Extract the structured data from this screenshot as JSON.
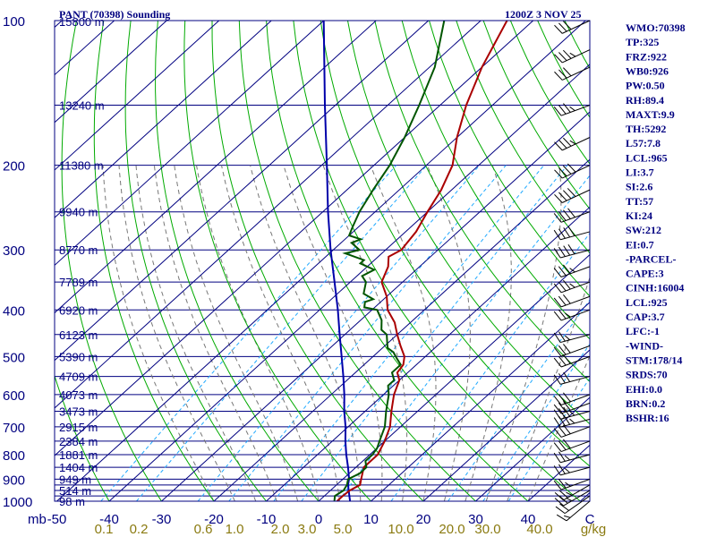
{
  "header": {
    "station": "PANT (70398) Sounding",
    "time": "1200Z  3 NOV 25"
  },
  "chart_data": {
    "type": "line",
    "subtype": "skew-T log-P sounding",
    "pressure_ticks": [
      {
        "p": 100,
        "label": "100"
      },
      {
        "p": 200,
        "label": "200"
      },
      {
        "p": 300,
        "label": "300"
      },
      {
        "p": 400,
        "label": "400"
      },
      {
        "p": 500,
        "label": "500"
      },
      {
        "p": 600,
        "label": "600"
      },
      {
        "p": 700,
        "label": "700"
      },
      {
        "p": 800,
        "label": "800"
      },
      {
        "p": 900,
        "label": "900"
      },
      {
        "p": 1000,
        "label": "1000"
      }
    ],
    "isobars": [
      100,
      150,
      200,
      250,
      300,
      350,
      400,
      450,
      500,
      550,
      600,
      650,
      700,
      750,
      800,
      850,
      900,
      925,
      950,
      975,
      1000
    ],
    "heights": [
      {
        "p": 100,
        "label": "15800 m"
      },
      {
        "p": 150,
        "label": "13240 m"
      },
      {
        "p": 200,
        "label": "11380 m"
      },
      {
        "p": 250,
        "label": "9940 m"
      },
      {
        "p": 300,
        "label": "8770 m"
      },
      {
        "p": 350,
        "label": "7789 m"
      },
      {
        "p": 400,
        "label": "6920 m"
      },
      {
        "p": 450,
        "label": "6123 m"
      },
      {
        "p": 500,
        "label": "5390 m"
      },
      {
        "p": 550,
        "label": "4709 m"
      },
      {
        "p": 600,
        "label": "4073 m"
      },
      {
        "p": 650,
        "label": "3473 m"
      },
      {
        "p": 700,
        "label": "2915 m"
      },
      {
        "p": 750,
        "label": "2384 m"
      },
      {
        "p": 800,
        "label": "1881 m"
      },
      {
        "p": 850,
        "label": "1404 m"
      },
      {
        "p": 900,
        "label": "949 m"
      },
      {
        "p": 950,
        "label": "514 m"
      },
      {
        "p": 1000,
        "label": "98 m"
      }
    ],
    "x_unit_label": "mb",
    "temp_ticks": [
      "-50",
      "-40",
      "-30",
      "-20",
      "-10",
      "0",
      "10",
      "20",
      "30",
      "40",
      "C"
    ],
    "mixing_ratio_ticks": [
      "0.1",
      "0.2",
      "0.6",
      "1.0",
      "2.0",
      "3.0",
      "5.0",
      "10.0",
      "20.0",
      "30.0",
      "40.0",
      "g/kg"
    ],
    "dewpoint_series": [
      {
        "p": 1000,
        "t": 3
      },
      {
        "p": 975,
        "t": 2
      },
      {
        "p": 950,
        "t": 2.5
      },
      {
        "p": 925,
        "t": 2
      },
      {
        "p": 900,
        "t": 1
      },
      {
        "p": 875,
        "t": 2
      },
      {
        "p": 850,
        "t": 2
      },
      {
        "p": 825,
        "t": 0.5
      },
      {
        "p": 800,
        "t": 0.5
      },
      {
        "p": 775,
        "t": 0
      },
      {
        "p": 750,
        "t": -1
      },
      {
        "p": 700,
        "t": -3
      },
      {
        "p": 650,
        "t": -6
      },
      {
        "p": 600,
        "t": -9
      },
      {
        "p": 575,
        "t": -11
      },
      {
        "p": 560,
        "t": -11
      },
      {
        "p": 540,
        "t": -13
      },
      {
        "p": 520,
        "t": -13
      },
      {
        "p": 505,
        "t": -15
      },
      {
        "p": 490,
        "t": -17
      },
      {
        "p": 480,
        "t": -19
      },
      {
        "p": 470,
        "t": -20
      },
      {
        "p": 450,
        "t": -22
      },
      {
        "p": 440,
        "t": -24
      },
      {
        "p": 420,
        "t": -26
      },
      {
        "p": 400,
        "t": -29
      },
      {
        "p": 395,
        "t": -32
      },
      {
        "p": 385,
        "t": -33
      },
      {
        "p": 380,
        "t": -32
      },
      {
        "p": 370,
        "t": -35
      },
      {
        "p": 350,
        "t": -37
      },
      {
        "p": 340,
        "t": -39
      },
      {
        "p": 330,
        "t": -38
      },
      {
        "p": 320,
        "t": -42
      },
      {
        "p": 315,
        "t": -42
      },
      {
        "p": 305,
        "t": -47
      },
      {
        "p": 300,
        "t": -45
      },
      {
        "p": 290,
        "t": -48
      },
      {
        "p": 285,
        "t": -47
      },
      {
        "p": 280,
        "t": -50
      },
      {
        "p": 270,
        "t": -51
      },
      {
        "p": 250,
        "t": -53
      },
      {
        "p": 225,
        "t": -55
      },
      {
        "p": 200,
        "t": -57
      },
      {
        "p": 175,
        "t": -60
      },
      {
        "p": 150,
        "t": -64
      },
      {
        "p": 125,
        "t": -69
      },
      {
        "p": 100,
        "t": -77
      }
    ],
    "temperature_series": [
      {
        "p": 1000,
        "t": 3.5
      },
      {
        "p": 975,
        "t": 3.5
      },
      {
        "p": 950,
        "t": 3.7
      },
      {
        "p": 925,
        "t": 4.5
      },
      {
        "p": 900,
        "t": 3.5
      },
      {
        "p": 850,
        "t": 1.5
      },
      {
        "p": 800,
        "t": 1.5
      },
      {
        "p": 750,
        "t": 0
      },
      {
        "p": 700,
        "t": -2
      },
      {
        "p": 650,
        "t": -5
      },
      {
        "p": 600,
        "t": -8
      },
      {
        "p": 560,
        "t": -10
      },
      {
        "p": 540,
        "t": -12
      },
      {
        "p": 520,
        "t": -12.5
      },
      {
        "p": 500,
        "t": -14
      },
      {
        "p": 475,
        "t": -17
      },
      {
        "p": 450,
        "t": -20
      },
      {
        "p": 425,
        "t": -23
      },
      {
        "p": 400,
        "t": -27
      },
      {
        "p": 375,
        "t": -30
      },
      {
        "p": 350,
        "t": -34
      },
      {
        "p": 325,
        "t": -36
      },
      {
        "p": 310,
        "t": -38
      },
      {
        "p": 300,
        "t": -37
      },
      {
        "p": 275,
        "t": -38
      },
      {
        "p": 250,
        "t": -40
      },
      {
        "p": 225,
        "t": -42
      },
      {
        "p": 200,
        "t": -45
      },
      {
        "p": 175,
        "t": -50
      },
      {
        "p": 150,
        "t": -55
      },
      {
        "p": 125,
        "t": -60
      },
      {
        "p": 100,
        "t": -65
      }
    ],
    "parcel_series": [
      {
        "p": 1000,
        "t": 6
      },
      {
        "p": 950,
        "t": 3.5
      },
      {
        "p": 925,
        "t": 2.2
      },
      {
        "p": 900,
        "t": 1.2
      },
      {
        "p": 850,
        "t": -1.5
      },
      {
        "p": 800,
        "t": -4.5
      },
      {
        "p": 750,
        "t": -7.5
      },
      {
        "p": 700,
        "t": -10.5
      },
      {
        "p": 650,
        "t": -14
      },
      {
        "p": 600,
        "t": -17.5
      },
      {
        "p": 550,
        "t": -21.5
      },
      {
        "p": 500,
        "t": -26
      },
      {
        "p": 450,
        "t": -31
      },
      {
        "p": 400,
        "t": -36.5
      },
      {
        "p": 350,
        "t": -43
      },
      {
        "p": 300,
        "t": -50.5
      },
      {
        "p": 250,
        "t": -59
      },
      {
        "p": 200,
        "t": -69
      },
      {
        "p": 150,
        "t": -82
      },
      {
        "p": 100,
        "t": -100
      }
    ],
    "wind_barbs": [
      {
        "p": 1000,
        "dir": 230,
        "spd": 15
      },
      {
        "p": 975,
        "dir": 235,
        "spd": 20
      },
      {
        "p": 950,
        "dir": 240,
        "spd": 25
      },
      {
        "p": 925,
        "dir": 240,
        "spd": 25
      },
      {
        "p": 900,
        "dir": 250,
        "spd": 25
      },
      {
        "p": 850,
        "dir": 255,
        "spd": 25
      },
      {
        "p": 800,
        "dir": 255,
        "spd": 25
      },
      {
        "p": 750,
        "dir": 250,
        "spd": 30
      },
      {
        "p": 700,
        "dir": 250,
        "spd": 30
      },
      {
        "p": 675,
        "dir": 255,
        "spd": 35
      },
      {
        "p": 650,
        "dir": 255,
        "spd": 35
      },
      {
        "p": 625,
        "dir": 250,
        "spd": 30
      },
      {
        "p": 600,
        "dir": 250,
        "spd": 30
      },
      {
        "p": 550,
        "dir": 255,
        "spd": 30
      },
      {
        "p": 500,
        "dir": 250,
        "spd": 30
      },
      {
        "p": 475,
        "dir": 250,
        "spd": 30
      },
      {
        "p": 450,
        "dir": 255,
        "spd": 25
      },
      {
        "p": 400,
        "dir": 250,
        "spd": 25
      },
      {
        "p": 375,
        "dir": 250,
        "spd": 30
      },
      {
        "p": 350,
        "dir": 250,
        "spd": 35
      },
      {
        "p": 325,
        "dir": 250,
        "spd": 35
      },
      {
        "p": 300,
        "dir": 255,
        "spd": 40
      },
      {
        "p": 275,
        "dir": 255,
        "spd": 40
      },
      {
        "p": 250,
        "dir": 250,
        "spd": 40
      },
      {
        "p": 225,
        "dir": 245,
        "spd": 40
      },
      {
        "p": 200,
        "dir": 245,
        "spd": 40
      },
      {
        "p": 175,
        "dir": 245,
        "spd": 35
      },
      {
        "p": 150,
        "dir": 250,
        "spd": 35
      },
      {
        "p": 125,
        "dir": 245,
        "spd": 30
      },
      {
        "p": 115,
        "dir": 245,
        "spd": 35
      },
      {
        "p": 100,
        "dir": 245,
        "spd": 30
      }
    ],
    "indices": [
      "WMO:70398",
      "TP:325",
      "FRZ:922",
      "WB0:926",
      "PW:0.50",
      "RH:89.4",
      "MAXT:9.9",
      "TH:5292",
      "L57:7.8",
      "LCL:965",
      "LI:3.7",
      "SI:2.6",
      "TT:57",
      "KI:24",
      "SW:212",
      "EI:0.7",
      "-PARCEL-",
      "CAPE:3",
      "CINH:16004",
      "LCL:925",
      "CAP:3.7",
      "LFC:-1",
      "-WIND-",
      "STM:178/14",
      "SRDS:70",
      "EHI:0.0",
      "BRN:0.2",
      "BSHR:16"
    ],
    "colors": {
      "isobar": "#000080",
      "isotherm": "#000080",
      "dry_adiabat": "#00aa00",
      "mixing_ratio": "#22aaff",
      "moist_adiabat": "#777777",
      "temperature": "#aa0000",
      "dewpoint": "#005500",
      "parcel": "#0000aa",
      "wind_barb": "#000000",
      "text": "#000080",
      "mixing_ratio_text": "#8a7a10"
    }
  }
}
